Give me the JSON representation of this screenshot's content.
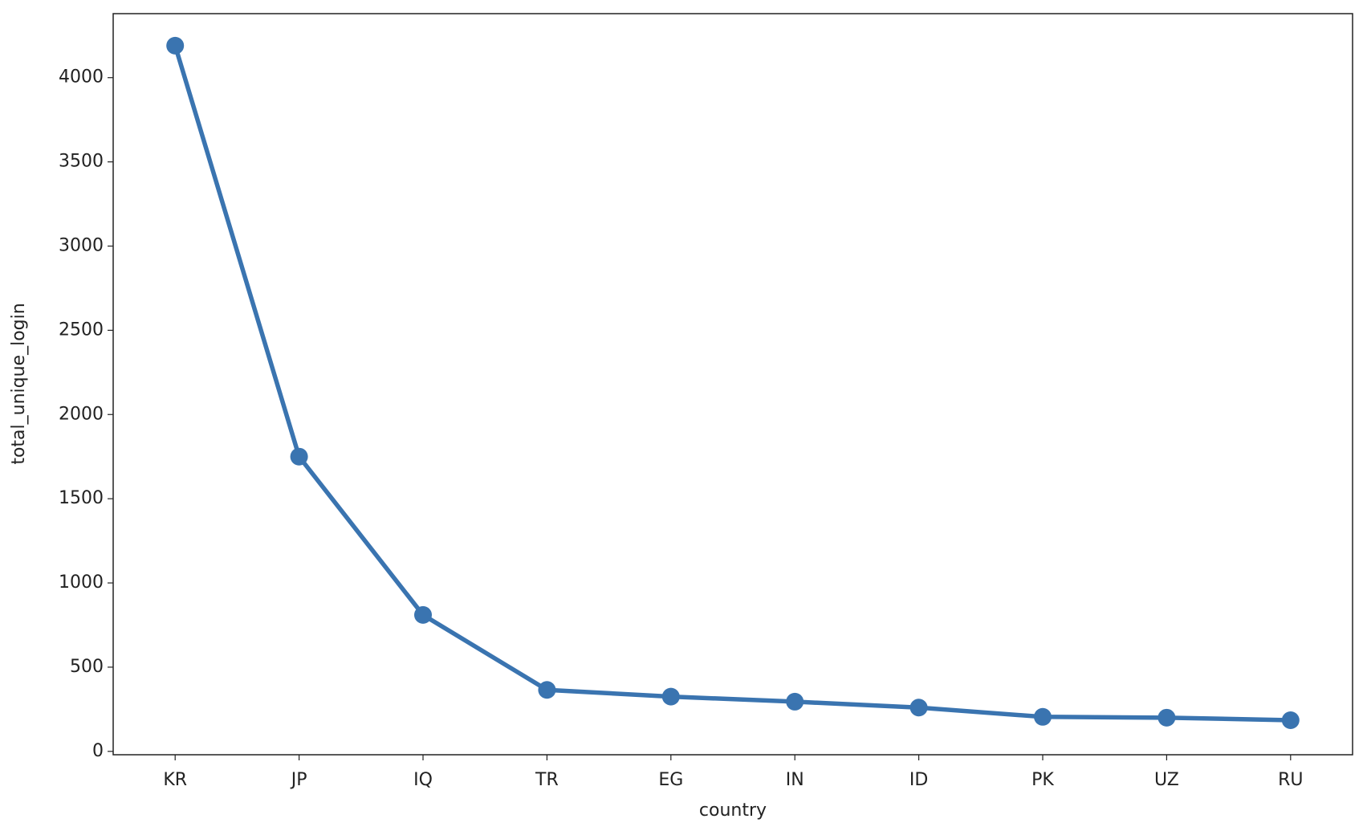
{
  "chart_data": {
    "type": "line",
    "x_label": "country",
    "y_label": "total_unique_login",
    "categories": [
      "KR",
      "JP",
      "IQ",
      "TR",
      "EG",
      "IN",
      "ID",
      "PK",
      "UZ",
      "RU"
    ],
    "values": [
      4190,
      1750,
      810,
      365,
      325,
      295,
      260,
      205,
      200,
      185
    ],
    "color": "#3a74b0",
    "ylim": [
      -20,
      4380
    ],
    "yticks": [
      0,
      500,
      1000,
      1500,
      2000,
      2500,
      3000,
      3500,
      4000
    ],
    "grid": false
  }
}
